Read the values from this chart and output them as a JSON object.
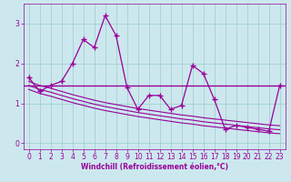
{
  "xlabel": "Windchill (Refroidissement éolien,°C)",
  "background_color": "#cce8ee",
  "line_color": "#990099",
  "x_values": [
    0,
    1,
    2,
    3,
    4,
    5,
    6,
    7,
    8,
    9,
    10,
    11,
    12,
    13,
    14,
    15,
    16,
    17,
    18,
    19,
    20,
    21,
    22,
    23
  ],
  "y_main": [
    1.65,
    1.3,
    1.45,
    1.55,
    2.0,
    2.6,
    2.4,
    3.2,
    2.7,
    1.4,
    0.85,
    1.2,
    1.2,
    0.85,
    0.95,
    1.95,
    1.75,
    1.1,
    0.35,
    0.45,
    0.4,
    0.35,
    0.3,
    1.45
  ],
  "y_trend1": [
    1.55,
    1.45,
    1.38,
    1.3,
    1.22,
    1.15,
    1.08,
    1.02,
    0.97,
    0.92,
    0.87,
    0.83,
    0.79,
    0.75,
    0.71,
    0.68,
    0.64,
    0.61,
    0.58,
    0.55,
    0.52,
    0.49,
    0.46,
    0.44
  ],
  "y_trend2": [
    1.45,
    1.35,
    1.28,
    1.2,
    1.12,
    1.05,
    0.98,
    0.92,
    0.87,
    0.82,
    0.77,
    0.73,
    0.69,
    0.65,
    0.61,
    0.58,
    0.54,
    0.51,
    0.48,
    0.45,
    0.42,
    0.39,
    0.36,
    0.34
  ],
  "y_trend3": [
    1.35,
    1.25,
    1.18,
    1.1,
    1.02,
    0.95,
    0.88,
    0.82,
    0.77,
    0.72,
    0.67,
    0.63,
    0.59,
    0.55,
    0.51,
    0.48,
    0.44,
    0.41,
    0.38,
    0.35,
    0.32,
    0.29,
    0.26,
    0.24
  ],
  "hline_y": 1.45,
  "ylim": [
    -0.15,
    3.5
  ],
  "xlim": [
    -0.5,
    23.5
  ],
  "yticks": [
    0,
    1,
    2,
    3
  ],
  "xticks": [
    0,
    1,
    2,
    3,
    4,
    5,
    6,
    7,
    8,
    9,
    10,
    11,
    12,
    13,
    14,
    15,
    16,
    17,
    18,
    19,
    20,
    21,
    22,
    23
  ],
  "grid_color": "#99cccc",
  "font_color": "#990099",
  "tick_fontsize": 5.5,
  "xlabel_fontsize": 5.5
}
